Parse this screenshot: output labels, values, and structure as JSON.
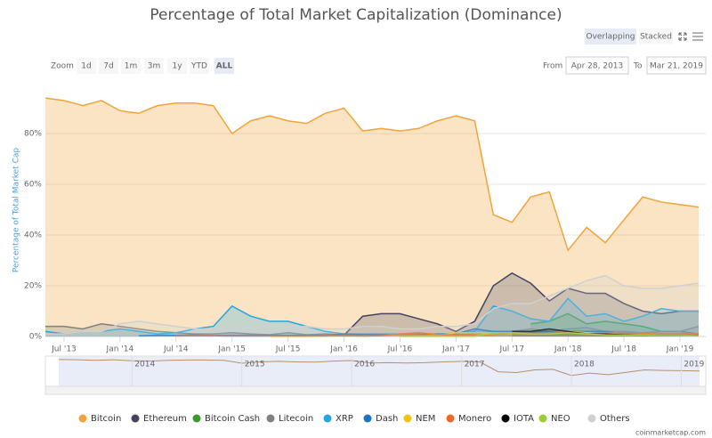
{
  "chart_data": {
    "type": "area",
    "title": "Percentage of Total Market Capitalization (Dominance)",
    "y_label": "Percentage of Total Market Cap",
    "ui": {
      "modes": [
        "Overlapping",
        "Stacked"
      ],
      "zoom_label": "Zoom",
      "zoom_buttons": [
        "1d",
        "7d",
        "1m",
        "3m",
        "1y",
        "YTD",
        "ALL"
      ],
      "from_label": "From",
      "from_date": "Apr 28, 2013",
      "to_label": "To",
      "to_date": "Mar 21, 2019",
      "credit": "coinmarketcap.com"
    },
    "navigator_labels": [
      "2014",
      "2015",
      "2016",
      "2017",
      "2018",
      "2019"
    ],
    "categories": [
      null,
      "Jul '13",
      null,
      null,
      "Jan '14",
      null,
      null,
      "Jul '14",
      null,
      null,
      "Jan '15",
      null,
      null,
      "Jul '15",
      null,
      null,
      "Jan '16",
      null,
      null,
      "Jul '16",
      null,
      null,
      "Jan '17",
      null,
      null,
      "Jul '17",
      null,
      null,
      "Jan '18",
      null,
      null,
      "Jul '18",
      null,
      null,
      "Jan '19",
      null
    ],
    "ylim": [
      0,
      100
    ],
    "yticks": [
      {
        "value": 0,
        "label": "0%"
      },
      {
        "value": 20,
        "label": "20%"
      },
      {
        "value": 40,
        "label": "40%"
      },
      {
        "value": 60,
        "label": "60%"
      },
      {
        "value": 80,
        "label": "80%"
      }
    ],
    "grid": true,
    "series": [
      {
        "name": "Bitcoin",
        "color": "#f0a43c",
        "values": [
          94,
          93,
          91,
          93,
          89,
          88,
          91,
          92,
          92,
          91,
          80,
          85,
          87,
          85,
          84,
          88,
          90,
          81,
          82,
          81,
          82,
          85,
          87,
          85,
          48,
          45,
          55,
          57,
          34,
          43,
          37,
          46,
          55,
          53,
          52,
          51
        ]
      },
      {
        "name": "Ethereum",
        "color": "#434360",
        "values": [
          null,
          null,
          null,
          null,
          null,
          null,
          null,
          null,
          null,
          null,
          null,
          null,
          null,
          null,
          0.2,
          0.2,
          0.5,
          8,
          9,
          9,
          7,
          5,
          2,
          6,
          20,
          25,
          21,
          14,
          19,
          17,
          17,
          13,
          10,
          9,
          10,
          10
        ]
      },
      {
        "name": "Bitcoin Cash",
        "color": "#3a9a2f",
        "values": [
          null,
          null,
          null,
          null,
          null,
          null,
          null,
          null,
          null,
          null,
          null,
          null,
          null,
          null,
          null,
          null,
          null,
          null,
          null,
          null,
          null,
          null,
          null,
          null,
          null,
          null,
          5,
          6,
          9,
          5,
          6,
          5,
          4,
          2,
          2,
          1
        ]
      },
      {
        "name": "Litecoin",
        "color": "#808080",
        "values": [
          4,
          4,
          3,
          5,
          4,
          3,
          2,
          1.5,
          1,
          1,
          1.5,
          1,
          0.7,
          1.5,
          0.7,
          1,
          0.6,
          0.5,
          0.6,
          0.5,
          0.5,
          0.6,
          0.6,
          1.2,
          2,
          2,
          3,
          2,
          3,
          3.5,
          2,
          2,
          1.5,
          2,
          2,
          4
        ]
      },
      {
        "name": "XRP",
        "color": "#23a7e0",
        "values": [
          2,
          1,
          2,
          2,
          3,
          2,
          1,
          1.5,
          3,
          4,
          12,
          8,
          6,
          6,
          4,
          2,
          1,
          1,
          1,
          1,
          1,
          1,
          1,
          2,
          12,
          10,
          7,
          6,
          15,
          8,
          9,
          6,
          8,
          11,
          10,
          10
        ]
      },
      {
        "name": "Dash",
        "color": "#1c75bc",
        "values": [
          null,
          null,
          null,
          null,
          null,
          0.3,
          0.5,
          0.5,
          0.6,
          0.4,
          0.5,
          0.5,
          0.5,
          0.5,
          0.5,
          0.5,
          1,
          0.8,
          0.7,
          0.5,
          0.6,
          1,
          1,
          3,
          2,
          2,
          2,
          2,
          2,
          2,
          2,
          1,
          1,
          1,
          1,
          1
        ]
      },
      {
        "name": "NEM",
        "color": "#f4c20d",
        "values": [
          null,
          null,
          null,
          null,
          null,
          null,
          null,
          null,
          null,
          null,
          null,
          null,
          0.1,
          0.1,
          0.1,
          0.2,
          0.2,
          0.2,
          0.3,
          0.3,
          0.3,
          0.4,
          1.5,
          1.5,
          1.5,
          1,
          1,
          1.5,
          2,
          1.5,
          1,
          0.7,
          0.6,
          0.5,
          0.5,
          0.4
        ]
      },
      {
        "name": "Monero",
        "color": "#f26522",
        "values": [
          null,
          null,
          null,
          null,
          null,
          null,
          null,
          0.2,
          0.3,
          0.3,
          0.2,
          0.2,
          0.2,
          0.2,
          0.2,
          0.3,
          0.3,
          0.2,
          0.3,
          1,
          1.5,
          0.8,
          0.6,
          0.5,
          0.6,
          1.5,
          1.2,
          1.2,
          1.7,
          1,
          1.4,
          1.6,
          1.3,
          1,
          1,
          1.1
        ]
      },
      {
        "name": "IOTA",
        "color": "#000000",
        "values": [
          null,
          null,
          null,
          null,
          null,
          null,
          null,
          null,
          null,
          null,
          null,
          null,
          null,
          null,
          null,
          null,
          null,
          null,
          null,
          null,
          null,
          null,
          null,
          null,
          null,
          2,
          2,
          3,
          2,
          1,
          1,
          0.6,
          0.4,
          0.4,
          0.3,
          0.3
        ]
      },
      {
        "name": "NEO",
        "color": "#9acd32",
        "values": [
          null,
          null,
          null,
          null,
          null,
          null,
          null,
          null,
          null,
          null,
          null,
          null,
          null,
          null,
          null,
          null,
          null,
          null,
          null,
          0.1,
          0.1,
          0.1,
          0.1,
          0.1,
          1.5,
          1.5,
          1,
          1,
          1.5,
          1,
          0.6,
          0.5,
          0.5,
          0.4,
          0.3,
          0.2
        ]
      },
      {
        "name": "Others",
        "color": "#d0d0d0",
        "values": [
          1,
          1,
          2,
          2,
          5,
          6,
          5,
          4,
          3,
          3,
          4,
          4,
          4,
          4,
          4,
          3,
          3,
          4,
          4,
          3,
          3,
          4,
          4,
          5,
          11,
          13,
          13,
          16,
          19,
          22,
          24,
          20,
          19,
          19,
          20,
          21
        ]
      }
    ]
  }
}
